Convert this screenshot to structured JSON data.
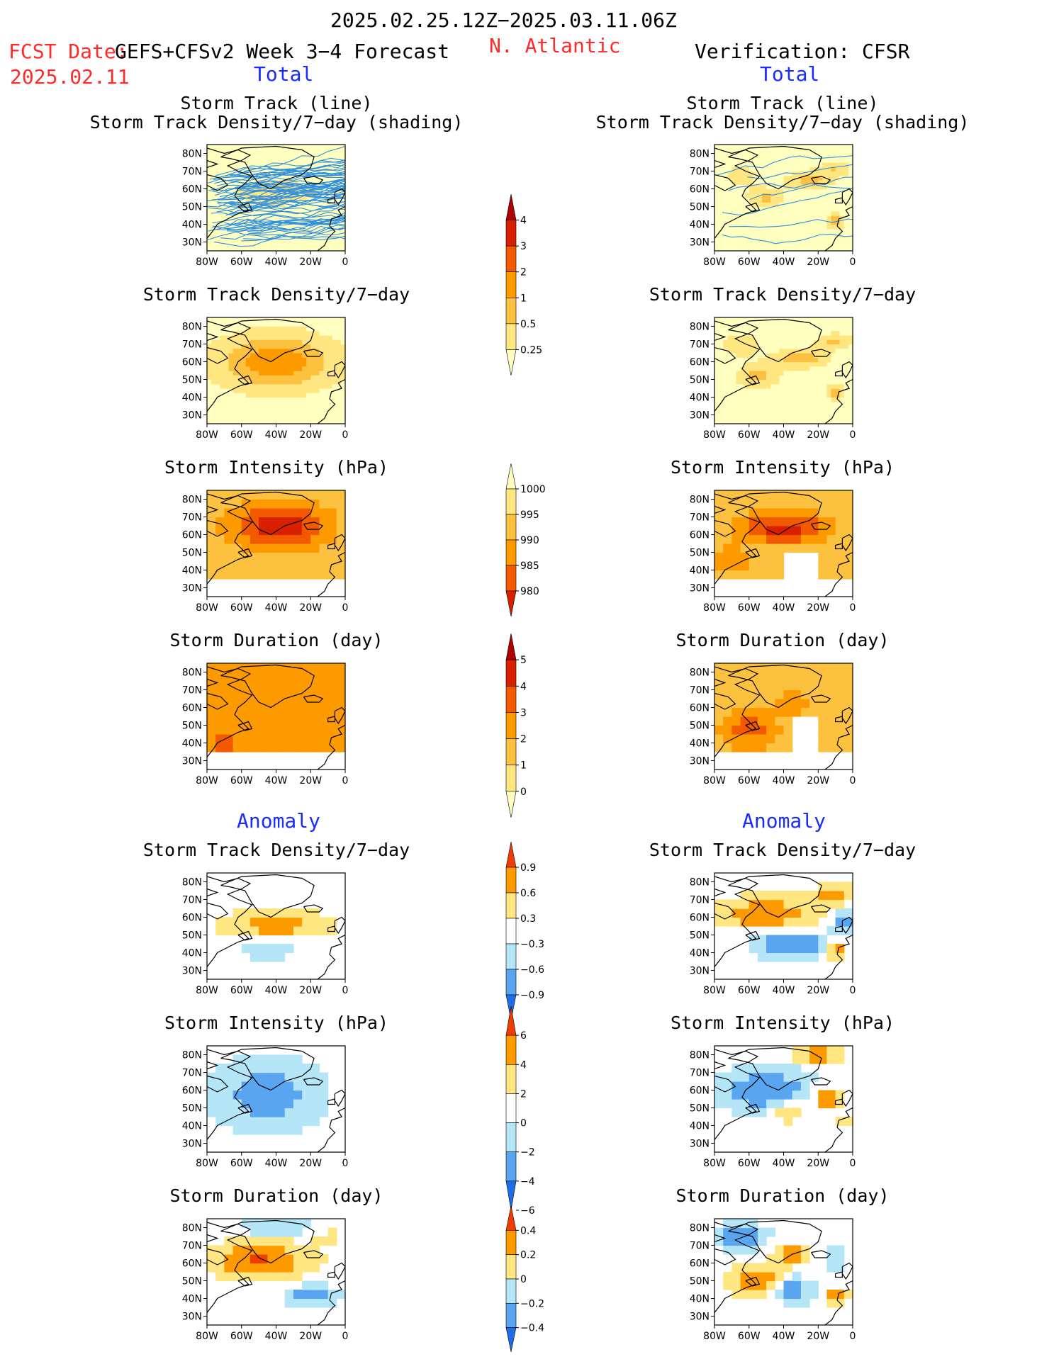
{
  "header": {
    "period": "2025.02.25.12Z−2025.03.11.06Z",
    "fcst_label": "FCST Date:",
    "fcst_model": "GEFS+CFSv2 Week 3−4 Forecast",
    "fcst_date": "2025.02.11",
    "region": "N. Atlantic",
    "verification": "Verification: CFSR"
  },
  "sections": {
    "total_left": "Total",
    "total_right": "Total",
    "anomaly_left": "Anomaly",
    "anomaly_right": "Anomaly"
  },
  "titles": {
    "track_line": "Storm Track (line)",
    "track_shading": "Storm Track Density/7−day (shading)",
    "density": "Storm Track Density/7−day",
    "intensity": "Storm Intensity (hPa)",
    "duration": "Storm Duration (day)"
  },
  "axes": {
    "lat": [
      "80N",
      "70N",
      "60N",
      "50N",
      "40N",
      "30N"
    ],
    "lon": [
      "80W",
      "60W",
      "40W",
      "20W",
      "0"
    ]
  },
  "colorbars": {
    "density_total": [
      "4",
      "3",
      "2",
      "1",
      "0.5",
      "0.25"
    ],
    "intensity_total": [
      "1000",
      "995",
      "990",
      "985",
      "980"
    ],
    "duration_total": [
      "5",
      "4",
      "3",
      "2",
      "1",
      "0"
    ],
    "density_anom": [
      "0.9",
      "0.6",
      "0.3",
      "−0.3",
      "−0.6",
      "−0.9"
    ],
    "intensity_anom": [
      "6",
      "4",
      "2",
      "0",
      "−2",
      "−4",
      "−6"
    ],
    "duration_anom": [
      "0.4",
      "0.2",
      "0",
      "−0.2",
      "−0.4"
    ]
  },
  "colors": {
    "seq_total": [
      "#ffffbf",
      "#ffe680",
      "#fdc140",
      "#fd9a00",
      "#f35a00",
      "#d82000",
      "#b00000"
    ],
    "div_anom": [
      "#1e6ee8",
      "#5aa5f0",
      "#b4e6f8",
      "#ffffff",
      "#ffe680",
      "#fd9a00",
      "#f03c00"
    ],
    "track_line": "#2f8fe0",
    "coast": "#000000"
  }
}
